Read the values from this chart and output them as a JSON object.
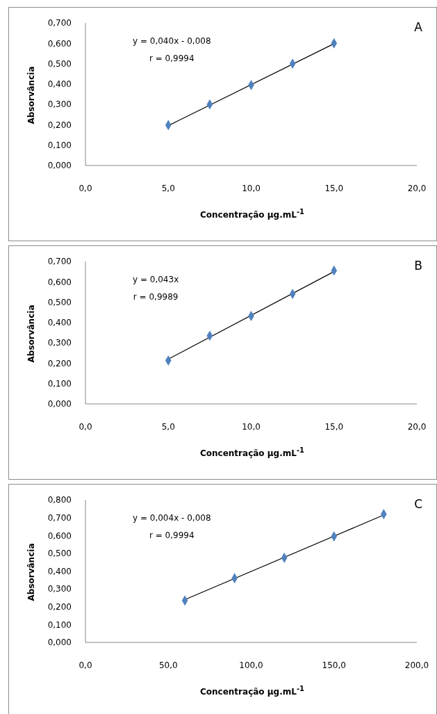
{
  "chart_data": [
    {
      "type": "scatter",
      "title": "A",
      "xlabel": "Concentração µg.mL$^{-1}$",
      "ylabel": "Absorvância",
      "marker": "diamond",
      "grid": false,
      "legend": false,
      "annotations": [
        "y = 0,040x - 0,008",
        "r = 0,9994"
      ],
      "xlim": [
        0,
        20
      ],
      "xticks": [
        {
          "value": 0,
          "label": "0,0"
        },
        {
          "value": 5,
          "label": "5,0"
        },
        {
          "value": 10,
          "label": "10,0"
        },
        {
          "value": 15,
          "label": "15,0"
        },
        {
          "value": 20,
          "label": "20,0"
        }
      ],
      "ylim": [
        0,
        0.7
      ],
      "yticks": [
        {
          "value": 0,
          "label": "0,000"
        },
        {
          "value": 0.1,
          "label": "0,100"
        },
        {
          "value": 0.2,
          "label": "0,200"
        },
        {
          "value": 0.3,
          "label": "0,300"
        },
        {
          "value": 0.4,
          "label": "0,400"
        },
        {
          "value": 0.5,
          "label": "0,500"
        },
        {
          "value": 0.6,
          "label": "0,600"
        },
        {
          "value": 0.7,
          "label": "0,700"
        }
      ],
      "series": [
        {
          "color": "#4f81bd",
          "x": [
            5,
            7.5,
            10,
            12.5,
            15
          ],
          "values": [
            0.198,
            0.3,
            0.395,
            0.5,
            0.6
          ]
        },
        {
          "type": "line",
          "color": "#000000",
          "marker": "none",
          "x": [
            5,
            15
          ],
          "values": [
            0.196,
            0.598
          ]
        }
      ]
    },
    {
      "type": "scatter",
      "title": "B",
      "xlabel": "Concentração µg.mL$^{-1}$",
      "ylabel": "Absorvância",
      "marker": "diamond",
      "grid": false,
      "legend": false,
      "annotations": [
        "y = 0,043x",
        "r = 0,9989"
      ],
      "xlim": [
        0,
        20
      ],
      "xticks": [
        {
          "value": 0,
          "label": "0,0"
        },
        {
          "value": 5,
          "label": "5,0"
        },
        {
          "value": 10,
          "label": "10,0"
        },
        {
          "value": 15,
          "label": "15,0"
        },
        {
          "value": 20,
          "label": "20,0"
        }
      ],
      "ylim": [
        0,
        0.7
      ],
      "yticks": [
        {
          "value": 0,
          "label": "0,000"
        },
        {
          "value": 0.1,
          "label": "0,100"
        },
        {
          "value": 0.2,
          "label": "0,200"
        },
        {
          "value": 0.3,
          "label": "0,300"
        },
        {
          "value": 0.4,
          "label": "0,400"
        },
        {
          "value": 0.5,
          "label": "0,500"
        },
        {
          "value": 0.6,
          "label": "0,600"
        },
        {
          "value": 0.7,
          "label": "0,700"
        }
      ],
      "series": [
        {
          "color": "#4f81bd",
          "x": [
            5,
            7.5,
            10,
            12.5,
            15
          ],
          "values": [
            0.213,
            0.335,
            0.432,
            0.54,
            0.655
          ]
        },
        {
          "type": "line",
          "color": "#000000",
          "marker": "none",
          "x": [
            5,
            15
          ],
          "values": [
            0.22,
            0.65
          ]
        }
      ]
    },
    {
      "type": "scatter",
      "title": "C",
      "xlabel": "Concentração µg.mL$^{-1}$",
      "ylabel": "Absorvância",
      "marker": "diamond",
      "grid": false,
      "legend": false,
      "annotations": [
        "y = 0,004x - 0,008",
        "r = 0,9994"
      ],
      "xlim": [
        0,
        200
      ],
      "xticks": [
        {
          "value": 0,
          "label": "0,0"
        },
        {
          "value": 50,
          "label": "50,0"
        },
        {
          "value": 100,
          "label": "100,0"
        },
        {
          "value": 150,
          "label": "150,0"
        },
        {
          "value": 200,
          "label": "200,0"
        }
      ],
      "ylim": [
        0,
        0.8
      ],
      "yticks": [
        {
          "value": 0,
          "label": "0,000"
        },
        {
          "value": 0.1,
          "label": "0,100"
        },
        {
          "value": 0.2,
          "label": "0,200"
        },
        {
          "value": 0.3,
          "label": "0,300"
        },
        {
          "value": 0.4,
          "label": "0,400"
        },
        {
          "value": 0.5,
          "label": "0,500"
        },
        {
          "value": 0.6,
          "label": "0,600"
        },
        {
          "value": 0.7,
          "label": "0,700"
        },
        {
          "value": 0.8,
          "label": "0,800"
        }
      ],
      "series": [
        {
          "color": "#4f81bd",
          "x": [
            60,
            90,
            120,
            150,
            180
          ],
          "values": [
            0.235,
            0.36,
            0.475,
            0.595,
            0.72
          ]
        },
        {
          "type": "line",
          "color": "#000000",
          "marker": "none",
          "x": [
            60,
            180
          ],
          "values": [
            0.24,
            0.715
          ]
        }
      ]
    }
  ]
}
